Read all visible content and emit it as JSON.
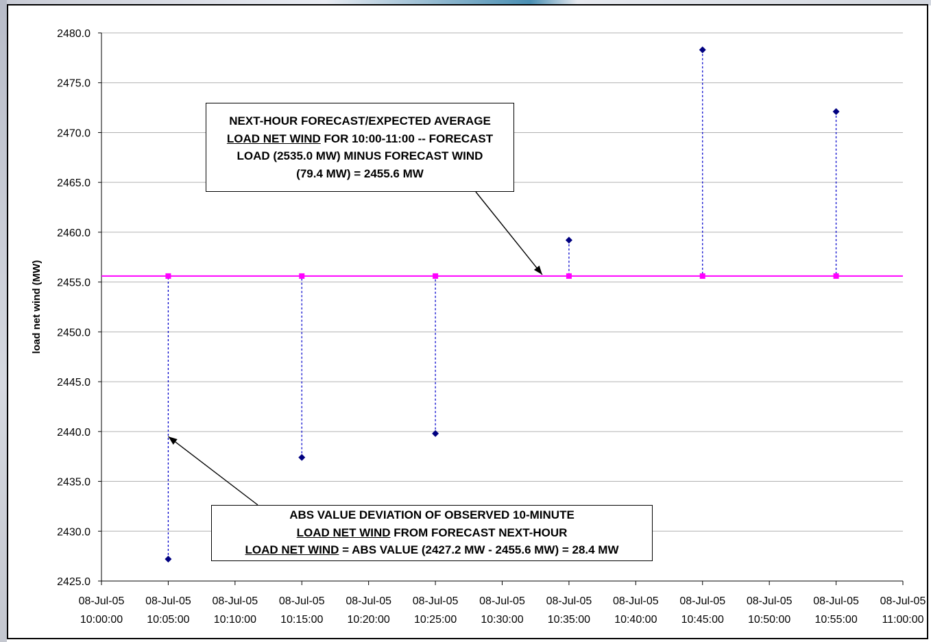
{
  "chart_data": {
    "type": "scatter",
    "title": "",
    "ylabel": "load net wind (MW)",
    "xlabel": "",
    "ylim": [
      2425.0,
      2480.0
    ],
    "y_ticks": [
      "2425.0",
      "2430.0",
      "2435.0",
      "2440.0",
      "2445.0",
      "2450.0",
      "2455.0",
      "2460.0",
      "2465.0",
      "2470.0",
      "2475.0",
      "2480.0"
    ],
    "x_ticks": [
      {
        "date": "08-Jul-05",
        "time": "10:00:00"
      },
      {
        "date": "08-Jul-05",
        "time": "10:05:00"
      },
      {
        "date": "08-Jul-05",
        "time": "10:10:00"
      },
      {
        "date": "08-Jul-05",
        "time": "10:15:00"
      },
      {
        "date": "08-Jul-05",
        "time": "10:20:00"
      },
      {
        "date": "08-Jul-05",
        "time": "10:25:00"
      },
      {
        "date": "08-Jul-05",
        "time": "10:30:00"
      },
      {
        "date": "08-Jul-05",
        "time": "10:35:00"
      },
      {
        "date": "08-Jul-05",
        "time": "10:40:00"
      },
      {
        "date": "08-Jul-05",
        "time": "10:45:00"
      },
      {
        "date": "08-Jul-05",
        "time": "10:50:00"
      },
      {
        "date": "08-Jul-05",
        "time": "10:55:00"
      },
      {
        "date": "08-Jul-05",
        "time": "11:00:00"
      }
    ],
    "grid": true,
    "forecast_level": 2455.6,
    "series": [
      {
        "color": "#000080",
        "marker": "diamond",
        "x": [
          "08-Jul-05 10:05:00",
          "08-Jul-05 10:15:00",
          "08-Jul-05 10:25:00",
          "08-Jul-05 10:35:00",
          "08-Jul-05 10:45:00",
          "08-Jul-05 10:55:00"
        ],
        "values": [
          2427.2,
          2437.4,
          2439.8,
          2459.2,
          2478.3,
          2472.1
        ]
      },
      {
        "color": "#FF00FF",
        "marker": "square",
        "x": [
          "08-Jul-05 10:05:00",
          "08-Jul-05 10:15:00",
          "08-Jul-05 10:25:00",
          "08-Jul-05 10:35:00",
          "08-Jul-05 10:45:00",
          "08-Jul-05 10:55:00"
        ],
        "values": [
          2455.6,
          2455.6,
          2455.6,
          2455.6,
          2455.6,
          2455.6
        ]
      }
    ],
    "annotations": {
      "top": {
        "line1": "NEXT-HOUR FORECAST/EXPECTED AVERAGE",
        "line2_underlined": "LOAD NET WIND",
        "line2_rest": " FOR 10:00-11:00 -- FORECAST",
        "line3": "LOAD (2535.0 MW) MINUS FORECAST WIND",
        "line4": "(79.4 MW) = 2455.6 MW"
      },
      "bottom": {
        "line1": "ABS VALUE DEVIATION OF OBSERVED 10-MINUTE",
        "line2_underlined": "LOAD NET WIND",
        "line2_rest": " FROM FORECAST NEXT-HOUR",
        "line3_underlined": "LOAD NET WIND",
        "line3_rest": " = ABS VALUE (2427.2 MW - 2455.6 MW) = 28.4 MW"
      }
    },
    "colors": {
      "forecast_line": "#FF00FF",
      "observed": "#000080",
      "deviation_line": "#0000CC",
      "grid": "#B0B0B0"
    }
  }
}
